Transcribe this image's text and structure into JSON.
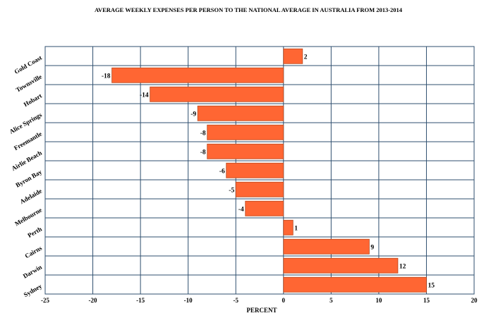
{
  "chart_data": {
    "type": "bar",
    "orientation": "horizontal",
    "title": "AVERAGE WEEKLY EXPENSES PER PERSON TO THE NATIONAL AVERAGE IN AUSTRALIA FROM 2013-2014",
    "xlabel": "PERCENT",
    "ylabel": "",
    "categories": [
      "Gold Coast",
      "Townsville",
      "Hobart",
      "Alice Springs",
      "Freemantle",
      "Airlie Beach",
      "Byron Bay",
      "Adelaide",
      "Melbourne",
      "Perth",
      "Cairns",
      "Darwin",
      "Sydney"
    ],
    "values": [
      2,
      -18,
      -14,
      -9,
      -8,
      -8,
      -6,
      -5,
      -4,
      1,
      9,
      12,
      15
    ],
    "data_labels": [
      "2",
      "-18",
      "-14",
      "-9",
      "-8",
      "-8",
      "-6",
      "-5",
      "-4",
      "1",
      "9",
      "12",
      "15"
    ],
    "xlim": [
      -25,
      20
    ],
    "xticks": [
      -25,
      -20,
      -15,
      -10,
      -5,
      0,
      5,
      10,
      15,
      20
    ],
    "xtick_labels": [
      "-25",
      "-20",
      "-15",
      "-10",
      "-5",
      "0",
      "5",
      "10",
      "15",
      "20"
    ],
    "grid": true,
    "legend": "none",
    "bar_color": "#ff6633",
    "bar_edge_color": "#b84a1f",
    "grid_color": "#2f4f6f"
  }
}
